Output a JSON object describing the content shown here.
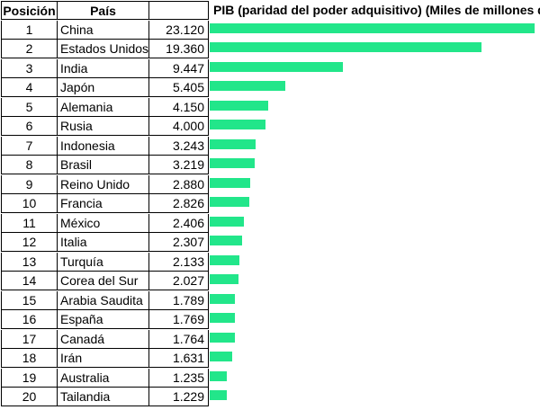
{
  "table": {
    "headers": {
      "position": "Posición",
      "country": "País",
      "pib": "PIB (paridad del poder adquisitivo) (Miles de millones de $)"
    }
  },
  "chart_data": {
    "type": "bar",
    "orientation": "horizontal",
    "bar_color": "#22e68a",
    "max_value": 23120,
    "rows": [
      {
        "pos": "1",
        "country": "China",
        "value_label": "23.120",
        "value": 23120
      },
      {
        "pos": "2",
        "country": "Estados Unidos",
        "value_label": "19.360",
        "value": 19360
      },
      {
        "pos": "3",
        "country": "India",
        "value_label": "9.447",
        "value": 9447
      },
      {
        "pos": "4",
        "country": "Japón",
        "value_label": "5.405",
        "value": 5405
      },
      {
        "pos": "5",
        "country": "Alemania",
        "value_label": "4.150",
        "value": 4150
      },
      {
        "pos": "6",
        "country": "Rusia",
        "value_label": "4.000",
        "value": 4000
      },
      {
        "pos": "7",
        "country": "Indonesia",
        "value_label": "3.243",
        "value": 3243
      },
      {
        "pos": "8",
        "country": "Brasil",
        "value_label": "3.219",
        "value": 3219
      },
      {
        "pos": "9",
        "country": "Reino Unido",
        "value_label": "2.880",
        "value": 2880
      },
      {
        "pos": "10",
        "country": "Francia",
        "value_label": "2.826",
        "value": 2826
      },
      {
        "pos": "11",
        "country": "México",
        "value_label": "2.406",
        "value": 2406
      },
      {
        "pos": "12",
        "country": "Italia",
        "value_label": "2.307",
        "value": 2307
      },
      {
        "pos": "13",
        "country": "Turquía",
        "value_label": "2.133",
        "value": 2133
      },
      {
        "pos": "14",
        "country": "Corea del Sur",
        "value_label": "2.027",
        "value": 2027
      },
      {
        "pos": "15",
        "country": "Arabia Saudita",
        "value_label": "1.789",
        "value": 1789
      },
      {
        "pos": "16",
        "country": "España",
        "value_label": "1.769",
        "value": 1769
      },
      {
        "pos": "17",
        "country": "Canadá",
        "value_label": "1.764",
        "value": 1764
      },
      {
        "pos": "18",
        "country": "Irán",
        "value_label": "1.631",
        "value": 1631
      },
      {
        "pos": "19",
        "country": "Australia",
        "value_label": "1.235",
        "value": 1235
      },
      {
        "pos": "20",
        "country": "Tailandia",
        "value_label": "1.229",
        "value": 1229
      }
    ]
  }
}
